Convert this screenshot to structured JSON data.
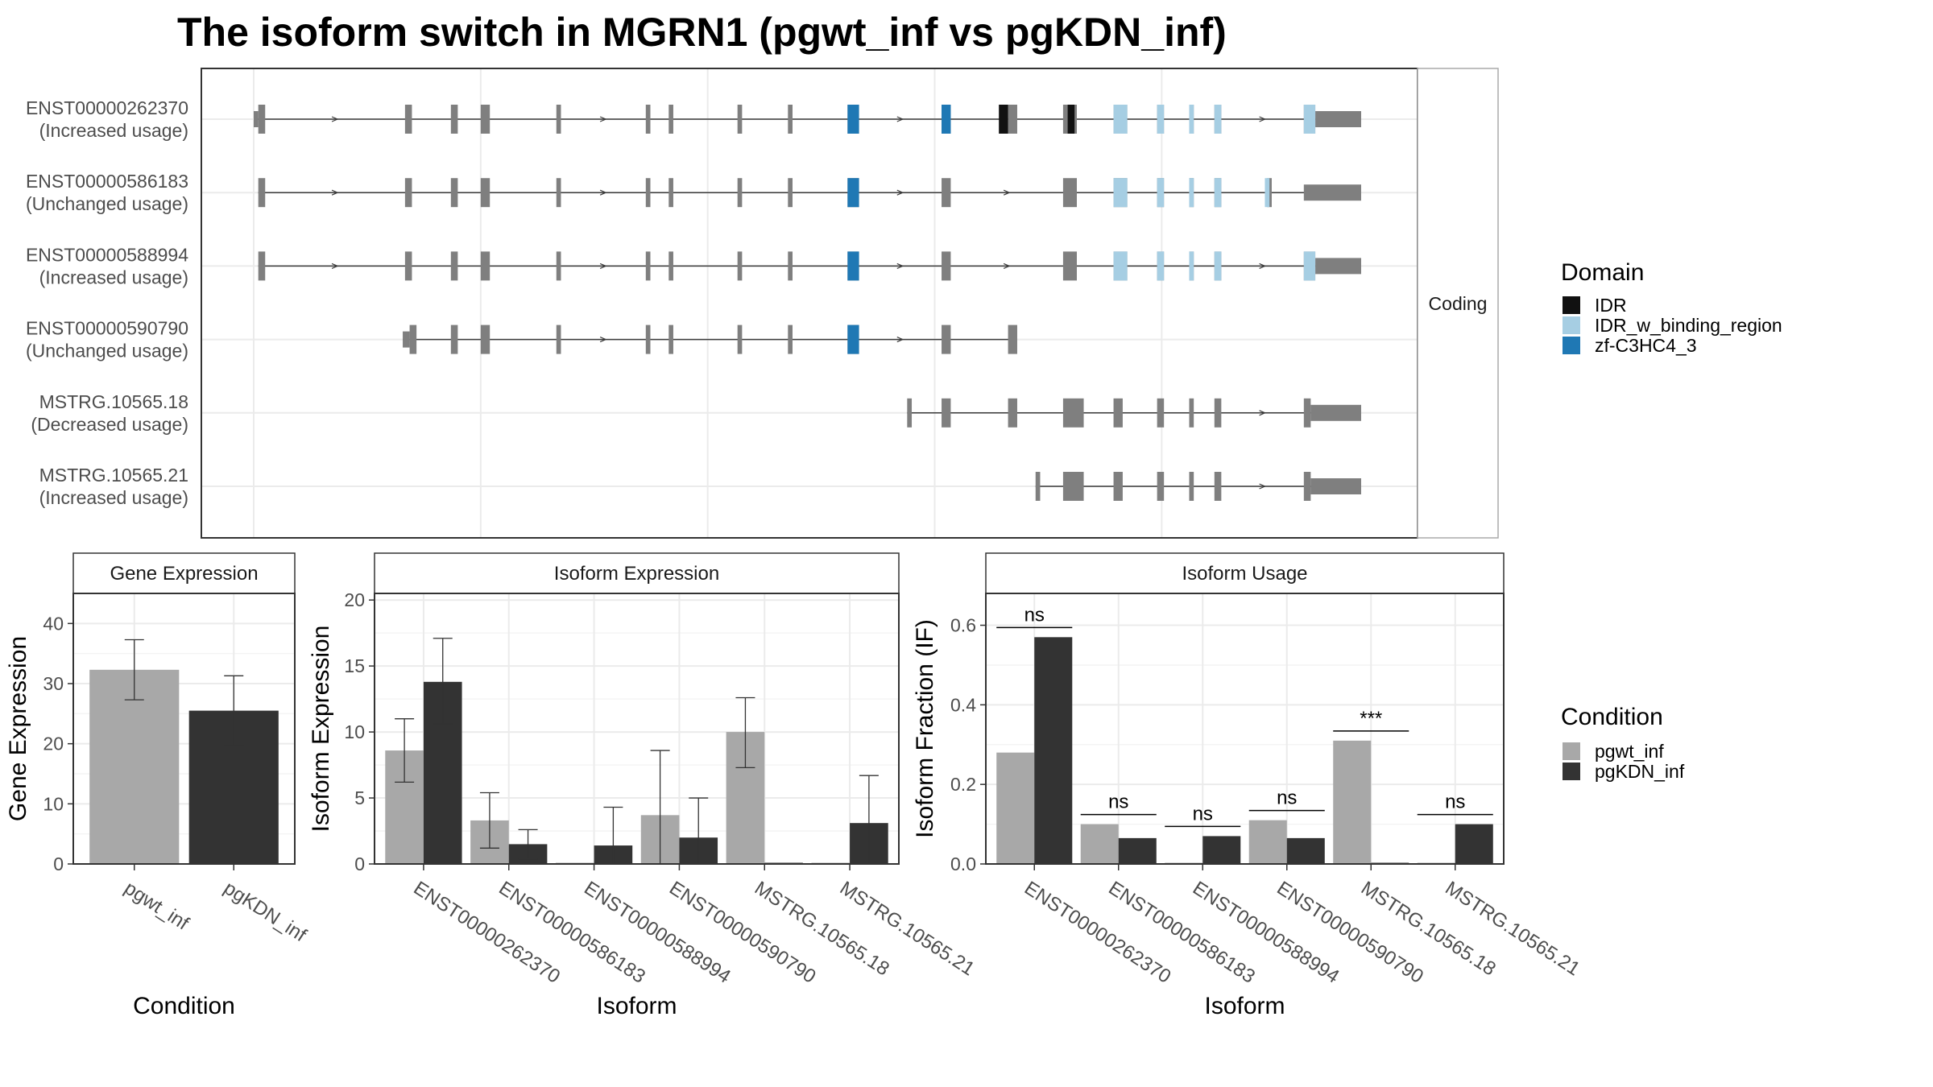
{
  "title": "The isoform switch in MGRN1 (pgwt_inf vs pgKDN_inf)",
  "colors": {
    "exon": "#7f7f7f",
    "intron": "#3a3a3a",
    "IDR": "#111111",
    "IDR_w_binding_region": "#a6cee3",
    "zf-C3HC4_3": "#1f78b4",
    "pgwt_inf": "#a8a8a8",
    "pgKDN_inf": "#333333",
    "grid": "#ebebeb",
    "panel_border": "#333333",
    "strip_border": "#aaaaaa"
  },
  "structure": {
    "strip_label": "Coding",
    "transcripts": [
      {
        "id": "ENST00000262370",
        "usage": "(Increased usage)",
        "exons": [
          [
            0.5,
            0.7,
            "utr"
          ],
          [
            0.7,
            1.0,
            "cds"
          ],
          [
            7.1,
            7.4,
            "cds"
          ],
          [
            9.1,
            9.4,
            "cds"
          ],
          [
            10.4,
            10.8,
            "cds"
          ],
          [
            13.7,
            13.9,
            "cds"
          ],
          [
            17.6,
            17.8,
            "cds"
          ],
          [
            18.6,
            18.8,
            "cds"
          ],
          [
            21.6,
            21.8,
            "cds"
          ],
          [
            23.8,
            24.0,
            "cds"
          ],
          [
            26.4,
            26.9,
            "cds"
          ],
          [
            30.5,
            30.9,
            "cds"
          ],
          [
            33.4,
            33.8,
            "cds"
          ],
          [
            35.8,
            36.4,
            "cds"
          ],
          [
            38.0,
            38.6,
            "cds"
          ],
          [
            39.9,
            40.2,
            "cds"
          ],
          [
            41.3,
            41.5,
            "cds"
          ],
          [
            42.4,
            42.7,
            "cds"
          ],
          [
            46.3,
            46.8,
            "cds"
          ],
          [
            46.8,
            48.8,
            "utr"
          ]
        ],
        "domains": [
          [
            26.4,
            26.9,
            "zf-C3HC4_3"
          ],
          [
            30.5,
            30.9,
            "zf-C3HC4_3"
          ],
          [
            33.0,
            33.4,
            "IDR"
          ],
          [
            36.0,
            36.3,
            "IDR"
          ],
          [
            38.0,
            38.6,
            "IDR_w_binding_region"
          ],
          [
            39.9,
            40.2,
            "IDR_w_binding_region"
          ],
          [
            41.3,
            41.5,
            "IDR_w_binding_region"
          ],
          [
            42.4,
            42.7,
            "IDR_w_binding_region"
          ],
          [
            46.3,
            46.8,
            "IDR_w_binding_region"
          ]
        ]
      },
      {
        "id": "ENST00000586183",
        "usage": "(Unchanged usage)",
        "exons": [
          [
            0.7,
            1.0,
            "cds"
          ],
          [
            7.1,
            7.4,
            "cds"
          ],
          [
            9.1,
            9.4,
            "cds"
          ],
          [
            10.4,
            10.8,
            "cds"
          ],
          [
            13.7,
            13.9,
            "cds"
          ],
          [
            17.6,
            17.8,
            "cds"
          ],
          [
            18.6,
            18.8,
            "cds"
          ],
          [
            21.6,
            21.8,
            "cds"
          ],
          [
            23.8,
            24.0,
            "cds"
          ],
          [
            26.4,
            26.9,
            "cds"
          ],
          [
            30.5,
            30.9,
            "cds"
          ],
          [
            35.8,
            36.4,
            "cds"
          ],
          [
            38.0,
            38.6,
            "cds"
          ],
          [
            39.9,
            40.2,
            "cds"
          ],
          [
            41.3,
            41.5,
            "cds"
          ],
          [
            42.4,
            42.7,
            "cds"
          ],
          [
            44.7,
            44.9,
            "cds"
          ],
          [
            46.3,
            48.8,
            "utr"
          ]
        ],
        "domains": [
          [
            26.4,
            26.9,
            "zf-C3HC4_3"
          ],
          [
            38.0,
            38.6,
            "IDR_w_binding_region"
          ],
          [
            39.9,
            40.2,
            "IDR_w_binding_region"
          ],
          [
            41.3,
            41.5,
            "IDR_w_binding_region"
          ],
          [
            42.4,
            42.7,
            "IDR_w_binding_region"
          ],
          [
            44.6,
            44.8,
            "IDR_w_binding_region"
          ]
        ]
      },
      {
        "id": "ENST00000588994",
        "usage": "(Increased usage)",
        "exons": [
          [
            0.7,
            1.0,
            "cds"
          ],
          [
            7.1,
            7.4,
            "cds"
          ],
          [
            9.1,
            9.4,
            "cds"
          ],
          [
            10.4,
            10.8,
            "cds"
          ],
          [
            13.7,
            13.9,
            "cds"
          ],
          [
            17.6,
            17.8,
            "cds"
          ],
          [
            18.6,
            18.8,
            "cds"
          ],
          [
            21.6,
            21.8,
            "cds"
          ],
          [
            23.8,
            24.0,
            "cds"
          ],
          [
            26.4,
            26.9,
            "cds"
          ],
          [
            30.5,
            30.9,
            "cds"
          ],
          [
            35.8,
            36.4,
            "cds"
          ],
          [
            38.0,
            38.6,
            "cds"
          ],
          [
            39.9,
            40.2,
            "cds"
          ],
          [
            41.3,
            41.5,
            "cds"
          ],
          [
            42.4,
            42.7,
            "cds"
          ],
          [
            46.3,
            46.8,
            "cds"
          ],
          [
            46.8,
            48.8,
            "utr"
          ]
        ],
        "domains": [
          [
            26.4,
            26.9,
            "zf-C3HC4_3"
          ],
          [
            38.0,
            38.6,
            "IDR_w_binding_region"
          ],
          [
            39.9,
            40.2,
            "IDR_w_binding_region"
          ],
          [
            41.3,
            41.5,
            "IDR_w_binding_region"
          ],
          [
            42.4,
            42.7,
            "IDR_w_binding_region"
          ],
          [
            46.3,
            46.8,
            "IDR_w_binding_region"
          ]
        ]
      },
      {
        "id": "ENST00000590790",
        "usage": "(Unchanged usage)",
        "exons": [
          [
            7.0,
            7.3,
            "utr"
          ],
          [
            7.3,
            7.6,
            "cds"
          ],
          [
            9.1,
            9.4,
            "cds"
          ],
          [
            10.4,
            10.8,
            "cds"
          ],
          [
            13.7,
            13.9,
            "cds"
          ],
          [
            17.6,
            17.8,
            "cds"
          ],
          [
            18.6,
            18.8,
            "cds"
          ],
          [
            21.6,
            21.8,
            "cds"
          ],
          [
            23.8,
            24.0,
            "cds"
          ],
          [
            26.4,
            26.9,
            "cds"
          ],
          [
            30.5,
            30.9,
            "cds"
          ],
          [
            33.4,
            33.8,
            "cds"
          ]
        ],
        "domains": [
          [
            26.4,
            26.9,
            "zf-C3HC4_3"
          ]
        ]
      },
      {
        "id": "MSTRG.10565.18",
        "usage": "(Decreased usage)",
        "exons": [
          [
            29.0,
            29.2,
            "cds"
          ],
          [
            30.5,
            30.9,
            "cds"
          ],
          [
            33.4,
            33.8,
            "cds"
          ],
          [
            35.8,
            36.7,
            "cds"
          ],
          [
            38.0,
            38.4,
            "cds"
          ],
          [
            39.9,
            40.2,
            "cds"
          ],
          [
            41.3,
            41.5,
            "cds"
          ],
          [
            42.4,
            42.7,
            "cds"
          ],
          [
            46.3,
            46.6,
            "cds"
          ],
          [
            46.6,
            48.8,
            "utr"
          ]
        ],
        "domains": []
      },
      {
        "id": "MSTRG.10565.21",
        "usage": "(Increased usage)",
        "exons": [
          [
            34.6,
            34.8,
            "cds"
          ],
          [
            35.8,
            36.7,
            "cds"
          ],
          [
            38.0,
            38.4,
            "cds"
          ],
          [
            39.9,
            40.2,
            "cds"
          ],
          [
            41.3,
            41.5,
            "cds"
          ],
          [
            42.4,
            42.7,
            "cds"
          ],
          [
            46.3,
            46.6,
            "cds"
          ],
          [
            46.6,
            48.8,
            "utr"
          ]
        ],
        "domains": []
      }
    ]
  },
  "legend_domain": {
    "title": "Domain",
    "items": [
      "IDR",
      "IDR_w_binding_region",
      "zf-C3HC4_3"
    ]
  },
  "legend_condition": {
    "title": "Condition",
    "items": [
      "pgwt_inf",
      "pgKDN_inf"
    ]
  },
  "chart_data": [
    {
      "type": "bar",
      "title": "Gene Expression",
      "xlabel": "Condition",
      "ylabel": "Gene Expression",
      "ylim": [
        0,
        45
      ],
      "yticks": [
        0,
        10,
        20,
        30,
        40
      ],
      "categories": [
        "pgwt_inf",
        "pgKDN_inf"
      ],
      "series": [
        {
          "name": "pgwt_inf",
          "values": [
            32.3,
            null
          ],
          "err_low": [
            27.3,
            null
          ],
          "err_high": [
            37.3,
            null
          ]
        },
        {
          "name": "pgKDN_inf",
          "values": [
            null,
            25.5
          ],
          "err_low": [
            null,
            19.7
          ],
          "err_high": [
            null,
            31.3
          ]
        }
      ]
    },
    {
      "type": "bar",
      "title": "Isoform Expression",
      "xlabel": "Isoform",
      "ylabel": "Isoform Expression",
      "ylim": [
        0,
        20.5
      ],
      "yticks": [
        0,
        5,
        10,
        15,
        20
      ],
      "categories": [
        "ENST00000262370",
        "ENST00000586183",
        "ENST00000588994",
        "ENST00000590790",
        "MSTRG.10565.18",
        "MSTRG.10565.21"
      ],
      "series": [
        {
          "name": "pgwt_inf",
          "values": [
            8.6,
            3.3,
            0.0,
            3.7,
            10.0,
            0.0
          ],
          "err_low": [
            6.2,
            1.2,
            0.0,
            0.0,
            7.3,
            0.0
          ],
          "err_high": [
            11.0,
            5.4,
            0.0,
            8.6,
            12.6,
            0.0
          ]
        },
        {
          "name": "pgKDN_inf",
          "values": [
            13.8,
            1.5,
            1.4,
            2.0,
            0.0,
            3.1
          ],
          "err_low": [
            10.6,
            0.4,
            0.0,
            0.0,
            0.0,
            0.0
          ],
          "err_high": [
            17.1,
            2.6,
            4.3,
            5.0,
            0.0,
            6.7
          ]
        }
      ]
    },
    {
      "type": "bar",
      "title": "Isoform Usage",
      "xlabel": "Isoform",
      "ylabel": "Isoform Fraction (IF)",
      "ylim": [
        0,
        0.68
      ],
      "yticks": [
        "0.0",
        "0.2",
        "0.4",
        "0.6"
      ],
      "categories": [
        "ENST00000262370",
        "ENST00000586183",
        "ENST00000588994",
        "ENST00000590790",
        "MSTRG.10565.18",
        "MSTRG.10565.21"
      ],
      "series": [
        {
          "name": "pgwt_inf",
          "values": [
            0.28,
            0.1,
            0.0,
            0.11,
            0.31,
            0.0
          ]
        },
        {
          "name": "pgKDN_inf",
          "values": [
            0.57,
            0.065,
            0.07,
            0.065,
            0.0,
            0.1
          ]
        }
      ],
      "significance": [
        "ns",
        "ns",
        "ns",
        "ns",
        "***",
        "ns"
      ]
    }
  ]
}
